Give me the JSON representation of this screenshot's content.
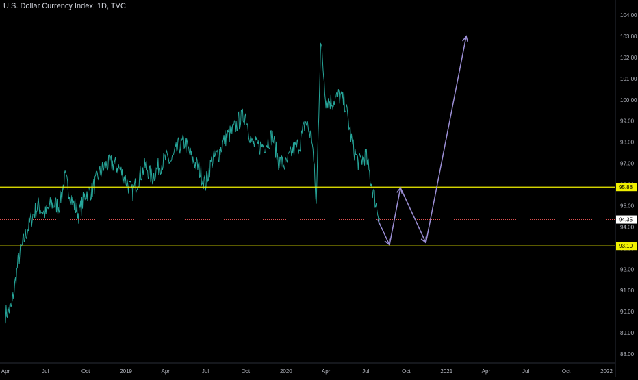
{
  "header": {
    "title": "U.S. Dollar Currency Index, 1D, TVC"
  },
  "colors": {
    "background": "#000000",
    "series": "#26a69a",
    "level_line": "#f0f000",
    "last_price_line": "#e05050",
    "projection": "#9c8fd6",
    "axis_text": "#b2b5be"
  },
  "chart_data": {
    "type": "line",
    "title": "U.S. Dollar Currency Index, 1D, TVC",
    "xlabel": "",
    "ylabel": "",
    "ylim": [
      87.7,
      104.4
    ],
    "grid": false,
    "y_ticks": [
      "88.00",
      "89.00",
      "90.00",
      "91.00",
      "92.00",
      "93.00",
      "94.00",
      "95.00",
      "96.00",
      "97.00",
      "98.00",
      "99.00",
      "100.00",
      "101.00",
      "102.00",
      "103.00",
      "104.00"
    ],
    "x_ticks": [
      "Apr",
      "Jul",
      "Oct",
      "2019",
      "Apr",
      "Jul",
      "Oct",
      "2020",
      "Apr",
      "Jul",
      "Oct",
      "2021",
      "Apr",
      "Jul",
      "Oct",
      "2022"
    ],
    "series": [
      {
        "x": [
          "2018-04-01",
          "2018-04-15",
          "2018-05-01",
          "2018-05-15",
          "2018-06-01",
          "2018-06-15",
          "2018-07-01",
          "2018-07-15",
          "2018-08-01",
          "2018-08-15",
          "2018-09-01",
          "2018-09-15",
          "2018-10-01",
          "2018-10-15",
          "2018-11-01",
          "2018-11-15",
          "2018-12-01",
          "2018-12-15",
          "2019-01-01",
          "2019-01-15",
          "2019-02-01",
          "2019-02-15",
          "2019-03-01",
          "2019-03-15",
          "2019-04-01",
          "2019-04-15",
          "2019-05-01",
          "2019-05-15",
          "2019-06-01",
          "2019-06-15",
          "2019-07-01",
          "2019-07-15",
          "2019-08-01",
          "2019-08-15",
          "2019-09-01",
          "2019-09-15",
          "2019-10-01",
          "2019-10-15",
          "2019-11-01",
          "2019-11-15",
          "2019-12-01",
          "2019-12-15",
          "2020-01-01",
          "2020-01-15",
          "2020-02-01",
          "2020-02-15",
          "2020-03-01",
          "2020-03-10",
          "2020-03-20",
          "2020-04-01",
          "2020-04-15",
          "2020-05-01",
          "2020-05-15",
          "2020-06-01",
          "2020-06-15",
          "2020-07-01",
          "2020-07-15",
          "2020-08-01"
        ],
        "values": [
          89.9,
          90.2,
          92.5,
          93.5,
          94.5,
          95.0,
          94.6,
          95.1,
          95.0,
          96.3,
          95.2,
          94.6,
          95.6,
          95.7,
          96.5,
          96.9,
          97.0,
          96.8,
          96.2,
          95.6,
          96.4,
          96.9,
          96.3,
          96.8,
          97.2,
          97.1,
          97.8,
          98.0,
          97.2,
          96.8,
          96.0,
          97.1,
          97.5,
          98.2,
          98.5,
          99.0,
          99.3,
          97.9,
          97.8,
          97.9,
          98.3,
          97.1,
          96.9,
          97.6,
          97.9,
          99.0,
          98.1,
          95.0,
          102.8,
          100.0,
          99.9,
          100.2,
          99.8,
          97.8,
          97.0,
          97.4,
          95.9,
          94.4
        ]
      }
    ],
    "horizontal_levels": [
      95.88,
      93.1
    ],
    "level_labels": [
      "95.88",
      "93.10"
    ],
    "last_price": 94.35,
    "last_price_label": "94.35",
    "projection_path": [
      {
        "x": "2020-07-28",
        "y": 94.35
      },
      {
        "x": "2020-08-24",
        "y": 93.15
      },
      {
        "x": "2020-09-18",
        "y": 95.85
      },
      {
        "x": "2020-11-15",
        "y": 93.25
      },
      {
        "x": "2021-02-15",
        "y": 103.0
      }
    ]
  }
}
